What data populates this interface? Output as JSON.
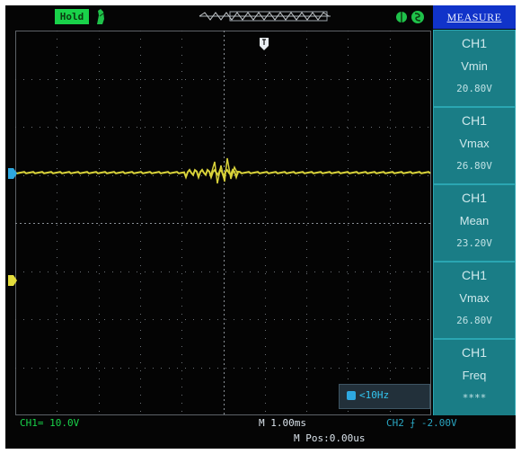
{
  "topbar": {
    "status_label": "Hold",
    "measure_title": "MEASURE"
  },
  "measurements": [
    {
      "channel": "CH1",
      "type": "Vmin",
      "value": "20.80V"
    },
    {
      "channel": "CH1",
      "type": "Vmax",
      "value": "26.80V"
    },
    {
      "channel": "CH1",
      "type": "Mean",
      "value": "23.20V"
    },
    {
      "channel": "CH1",
      "type": "Vmax",
      "value": "26.80V"
    },
    {
      "channel": "CH1",
      "type": "Freq",
      "value": "****"
    }
  ],
  "freq_readout": "<10Hz",
  "bottom": {
    "ch1_scale": "CH1= 10.0V",
    "timebase": "M 1.00ms",
    "trigger": "CH2 ⨍ -2.00V",
    "m_pos": "M Pos:0.00us"
  },
  "colors": {
    "trace": "#d8d23a",
    "panel_bg": "#1a7d86",
    "header_bg": "#1033c9",
    "hold_bg": "#19d24a",
    "grid": "#7a7f84"
  }
}
